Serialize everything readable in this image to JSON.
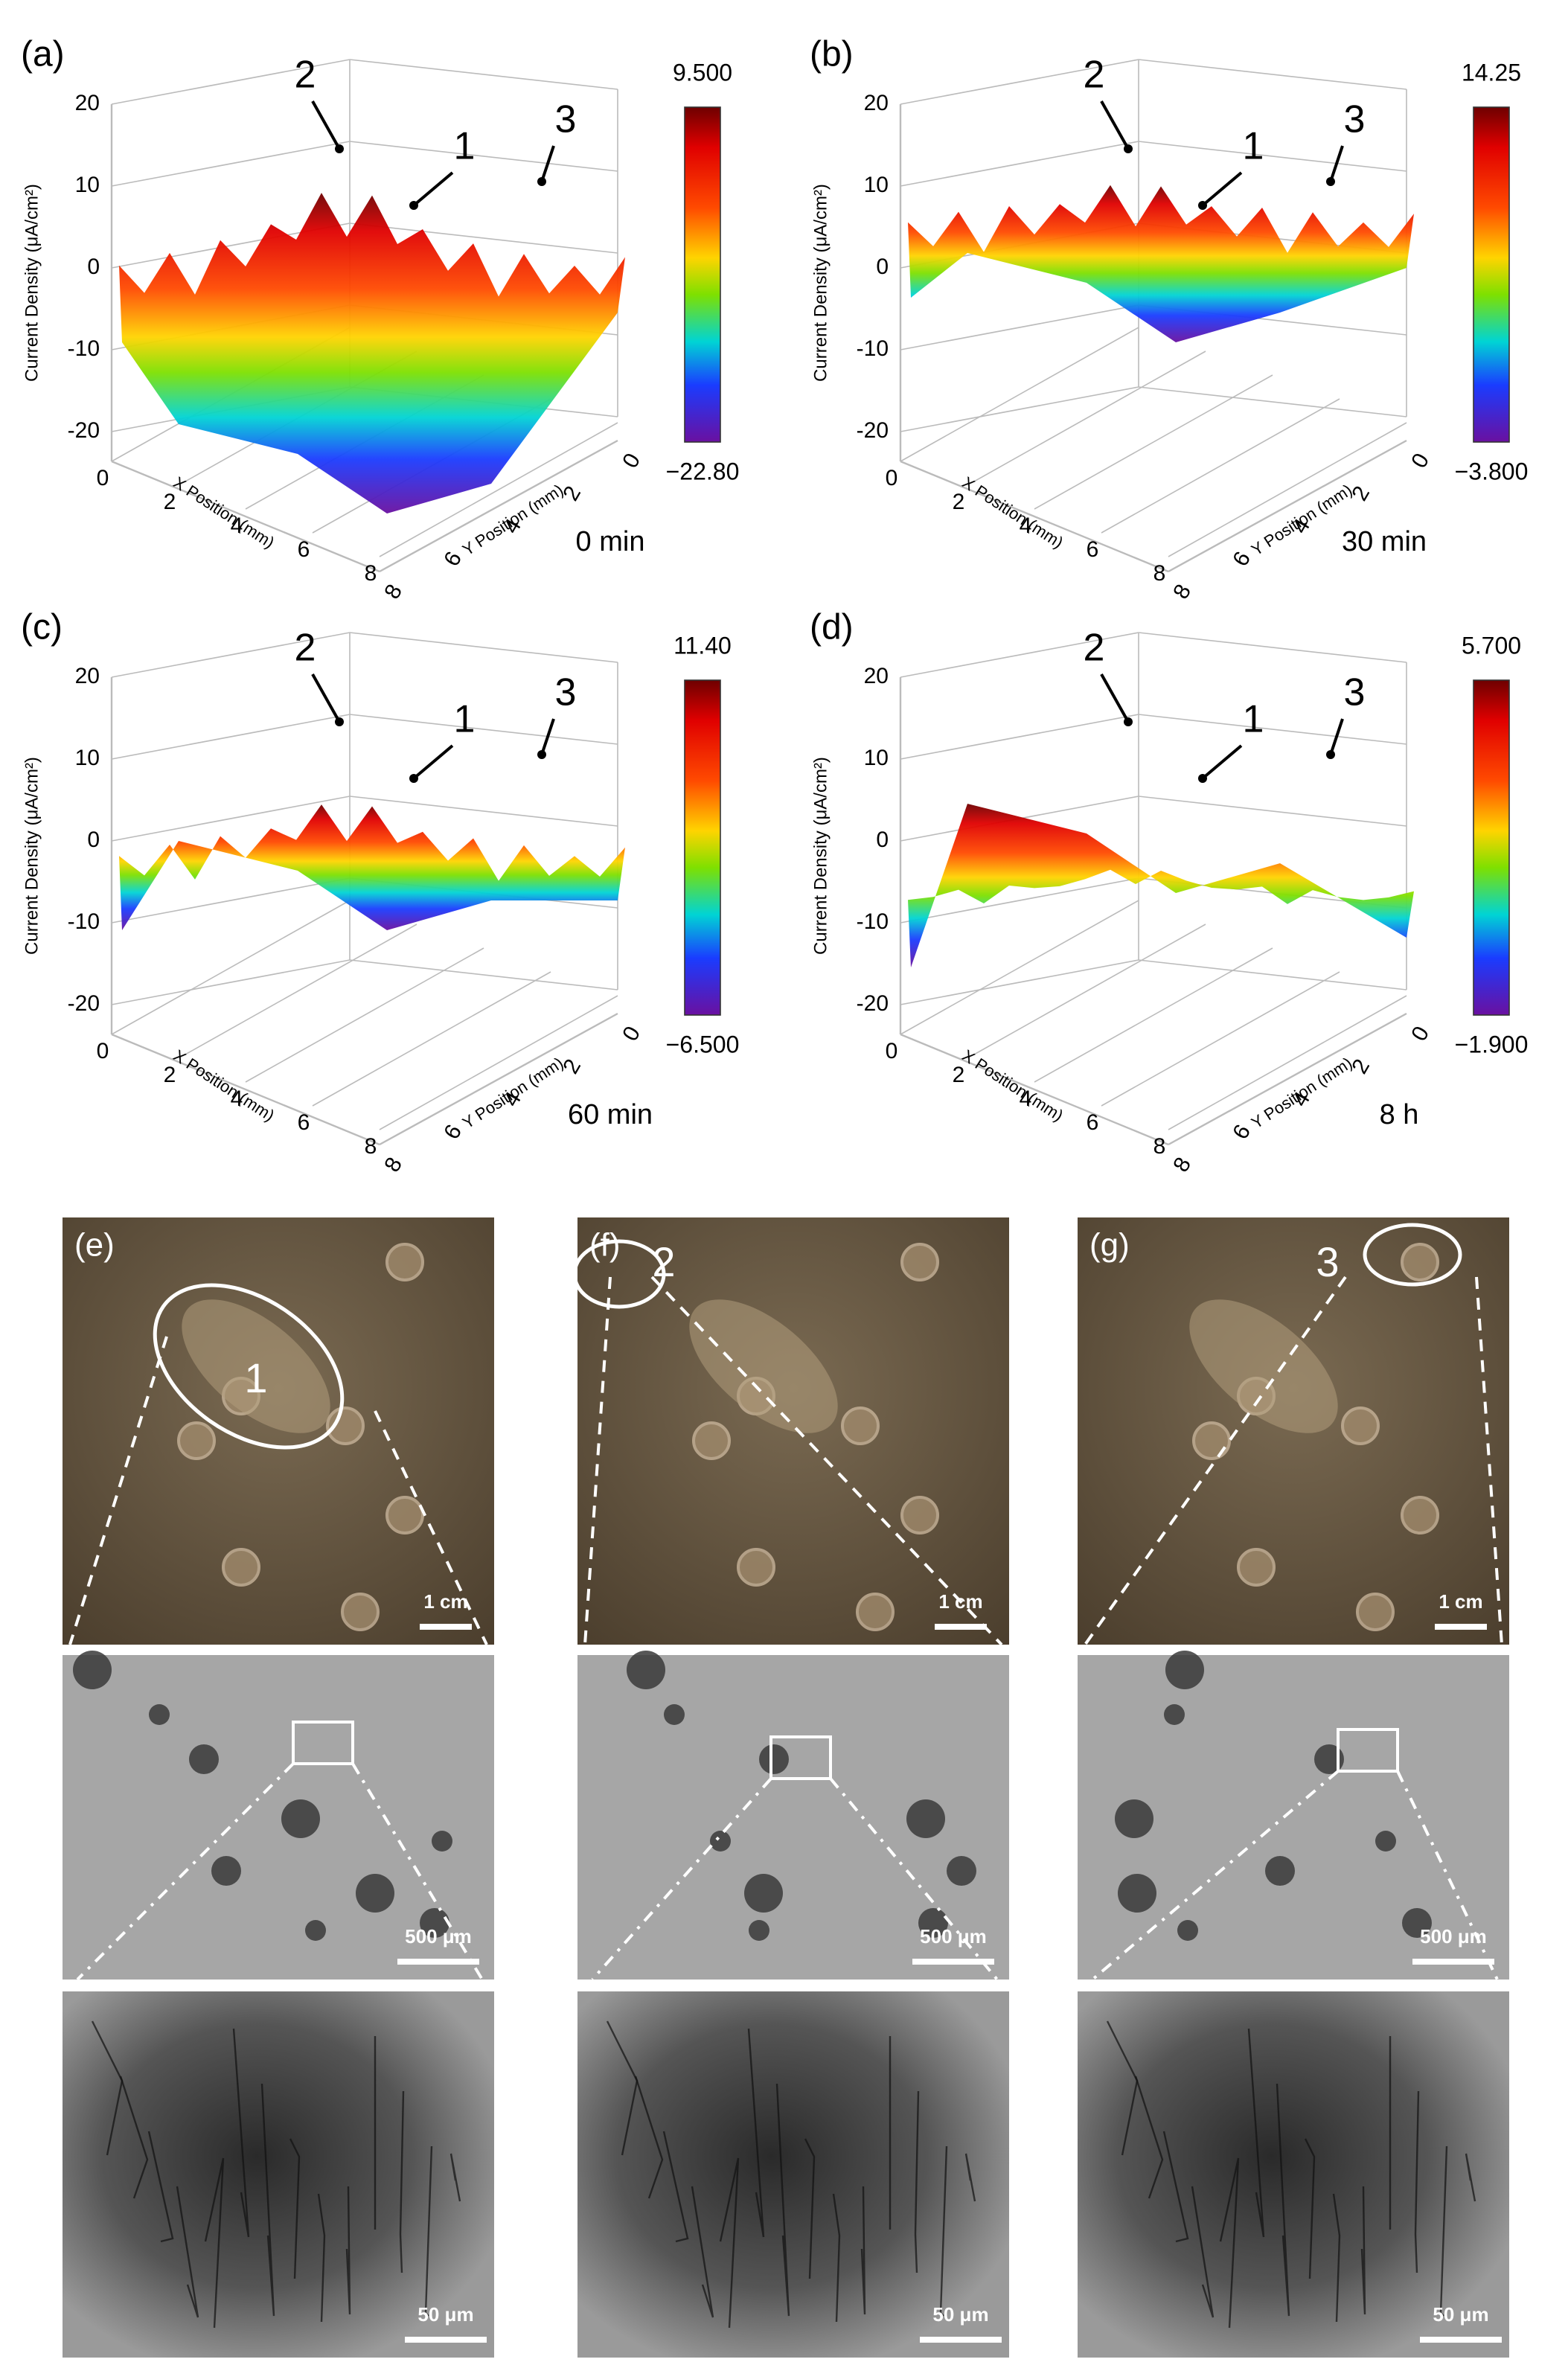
{
  "axes": {
    "z_title": "Current Density (μA/cm²)",
    "z_ticks": [
      "20",
      "10",
      "0",
      "-10",
      "-20"
    ],
    "x_title": "X Position (mm)",
    "y_title": "Y Position (mm)",
    "floor_ticks": [
      "0",
      "2",
      "4",
      "6",
      "8"
    ]
  },
  "panels": [
    {
      "label": "(a)",
      "time": "0 min",
      "colorbar_max": "9.500",
      "colorbar_min": "−22.80",
      "markers": [
        "2",
        "1",
        "3"
      ]
    },
    {
      "label": "(b)",
      "time": "30 min",
      "colorbar_max": "14.25",
      "colorbar_min": "−3.800",
      "markers": [
        "2",
        "1",
        "3"
      ]
    },
    {
      "label": "(c)",
      "time": "60 min",
      "colorbar_max": "11.40",
      "colorbar_min": "−6.500",
      "markers": [
        "2",
        "1",
        "3"
      ]
    },
    {
      "label": "(d)",
      "time": "8 h",
      "colorbar_max": "5.700",
      "colorbar_min": "−1.900",
      "markers": [
        "2",
        "1",
        "3"
      ]
    }
  ],
  "micrographs": [
    {
      "label": "(e)",
      "marker": "1"
    },
    {
      "label": "(f)",
      "marker": "2"
    },
    {
      "label": "(g)",
      "marker": "3"
    }
  ],
  "scale_bars": [
    "1 cm",
    "500 μm",
    "50 μm"
  ]
}
